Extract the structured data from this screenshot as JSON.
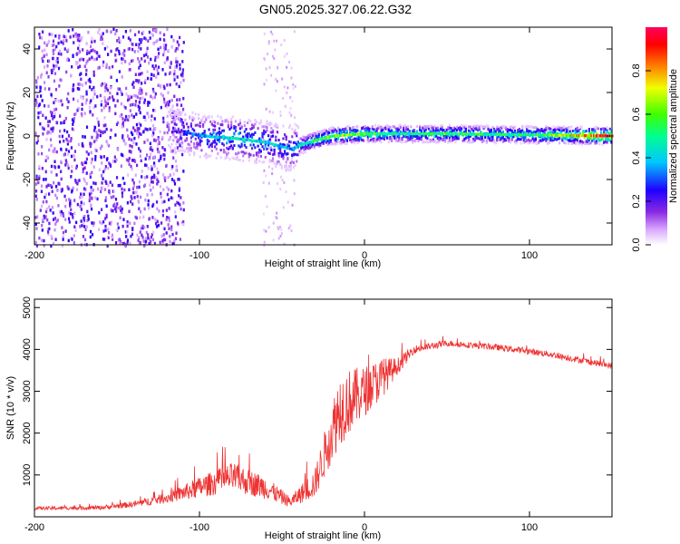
{
  "title": "GN05.2025.327.06.22.G32",
  "colors": {
    "snr_line": "#ee3333",
    "axis": "#000000",
    "colormap": [
      "#ffffff",
      "#e8c8ff",
      "#b070ff",
      "#7000ff",
      "#2020ff",
      "#00c8ff",
      "#00ff80",
      "#40ff00",
      "#ffe000",
      "#ff6000",
      "#ff0000",
      "#ff0060"
    ]
  },
  "chart_data": [
    {
      "type": "heatmap",
      "name": "spectrogram",
      "xlabel": "Height of straight line (km)",
      "ylabel": "Frequency (Hz)",
      "xlim": [
        -200,
        150
      ],
      "ylim": [
        -50,
        50
      ],
      "xticks": [
        "-200",
        "-100",
        "0",
        "100"
      ],
      "yticks": [
        "-40",
        "-20",
        "0",
        "20",
        "40"
      ],
      "ridge": [
        {
          "x": -110,
          "f": 2,
          "amp": 0.25
        },
        {
          "x": -100,
          "f": 0,
          "amp": 0.35
        },
        {
          "x": -80,
          "f": -1,
          "amp": 0.45
        },
        {
          "x": -60,
          "f": -3,
          "amp": 0.4
        },
        {
          "x": -45,
          "f": -6,
          "amp": 0.35
        },
        {
          "x": -35,
          "f": -3,
          "amp": 0.45
        },
        {
          "x": -20,
          "f": 0,
          "amp": 0.65
        },
        {
          "x": 0,
          "f": 1,
          "amp": 0.6
        },
        {
          "x": 20,
          "f": 1,
          "amp": 0.45
        },
        {
          "x": 50,
          "f": 1,
          "amp": 0.55
        },
        {
          "x": 100,
          "f": 0.5,
          "amp": 0.5
        },
        {
          "x": 150,
          "f": 0,
          "amp": 0.95
        }
      ],
      "colorbar": {
        "label": "Normalized spectral amplitude",
        "ticks": [
          "0.0",
          "0.2",
          "0.4",
          "0.6",
          "0.8"
        ]
      }
    },
    {
      "type": "line",
      "name": "snr",
      "xlabel": "Height of straight line (km)",
      "ylabel": "SNR (10 * v/v)",
      "xlim": [
        -200,
        150
      ],
      "ylim": [
        0,
        5200
      ],
      "xticks": [
        "-200",
        "-100",
        "0",
        "100"
      ],
      "yticks": [
        "1000",
        "2000",
        "3000",
        "4000",
        "5000"
      ],
      "envelope": [
        {
          "x": -200,
          "y": 200,
          "noise": 80
        },
        {
          "x": -160,
          "y": 220,
          "noise": 100
        },
        {
          "x": -140,
          "y": 300,
          "noise": 150
        },
        {
          "x": -120,
          "y": 450,
          "noise": 250
        },
        {
          "x": -100,
          "y": 700,
          "noise": 500
        },
        {
          "x": -80,
          "y": 950,
          "noise": 700
        },
        {
          "x": -60,
          "y": 700,
          "noise": 550
        },
        {
          "x": -45,
          "y": 350,
          "noise": 250
        },
        {
          "x": -30,
          "y": 800,
          "noise": 700
        },
        {
          "x": -15,
          "y": 2600,
          "noise": 1800
        },
        {
          "x": 0,
          "y": 3000,
          "noise": 1200
        },
        {
          "x": 10,
          "y": 3300,
          "noise": 1000
        },
        {
          "x": 20,
          "y": 3600,
          "noise": 400
        },
        {
          "x": 30,
          "y": 4000,
          "noise": 200
        },
        {
          "x": 50,
          "y": 4150,
          "noise": 150
        },
        {
          "x": 80,
          "y": 4050,
          "noise": 150
        },
        {
          "x": 110,
          "y": 3900,
          "noise": 150
        },
        {
          "x": 150,
          "y": 3600,
          "noise": 150
        }
      ]
    }
  ]
}
